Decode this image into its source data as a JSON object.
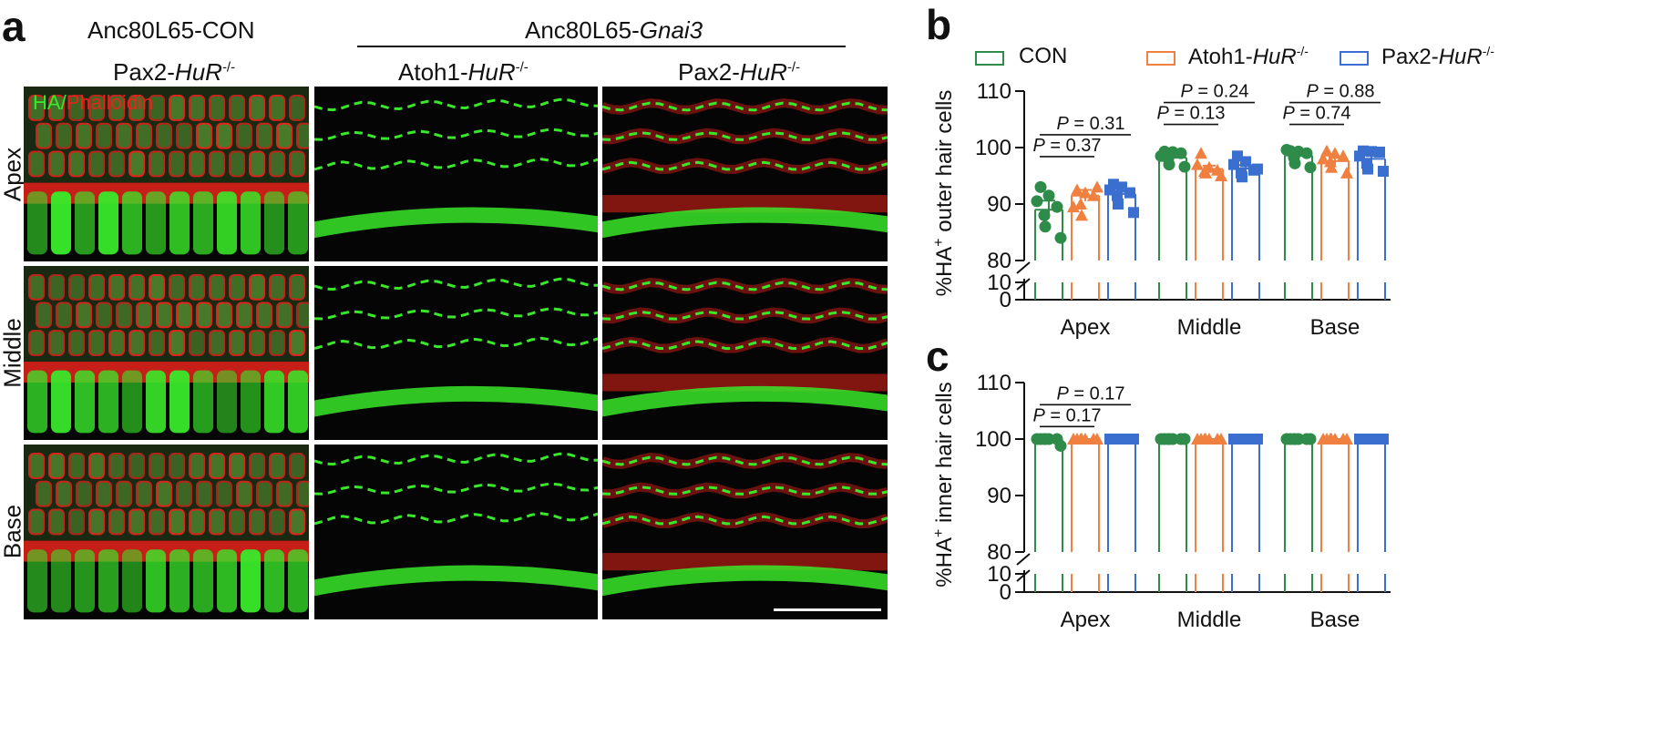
{
  "panel_a": {
    "letter": "a",
    "group_con": "Anc80L65-CON",
    "group_gnai3_prefix": "Anc80L65-",
    "group_gnai3_gene": "Gnai3",
    "col_con_prefix": "Pax2-",
    "col_con_gene": "HuR",
    "col_con_sup": "-/-",
    "col_atoh_prefix": "Atoh1-",
    "col_atoh_gene": "HuR",
    "col_atoh_sup": "-/-",
    "col_pax_prefix": "Pax2-",
    "col_pax_gene": "HuR",
    "col_pax_sup": "-/-",
    "rows": [
      "Apex",
      "Middle",
      "Base"
    ],
    "stain_ha": "HA",
    "stain_sep": "/",
    "stain_phalloidin": "Phalloidin",
    "colors": {
      "ha": "#39e82a",
      "phalloidin": "#e8241c"
    }
  },
  "legend": {
    "con": "CON",
    "atoh_prefix": "Atoh1-",
    "atoh_gene": "HuR",
    "atoh_sup": "-/-",
    "pax_prefix": "Pax2-",
    "pax_gene": "HuR",
    "pax_sup": "-/-"
  },
  "colors": {
    "con": "#2e8b4a",
    "atoh": "#f08040",
    "pax": "#3a6fd0"
  },
  "chart_data": [
    {
      "letter": "b",
      "type": "bar",
      "ylabel_prefix": "%HA",
      "ylabel_sup": "+",
      "ylabel_suffix": " outer hair cells",
      "categories": [
        "Apex",
        "Middle",
        "Base"
      ],
      "y_break": {
        "lower": [
          0,
          10
        ],
        "upper": [
          80,
          110
        ]
      },
      "yticks_upper": [
        80,
        90,
        100,
        110
      ],
      "yticks_lower": [
        0,
        10
      ],
      "series": [
        {
          "name": "CON",
          "values": [
            89.0,
            98.2,
            98.6
          ],
          "sem": [
            1.6,
            0.7,
            0.8
          ],
          "points": [
            [
              93.0,
              91.5,
              89.5,
              88.0,
              86.0,
              84.0,
              90.5
            ],
            [
              99.3,
              99.2,
              99.0,
              98.0,
              97.0,
              96.6,
              98.5
            ],
            [
              99.4,
              99.3,
              99.0,
              98.2,
              97.2,
              96.5,
              99.6
            ]
          ]
        },
        {
          "name": "Atoh1-HuR-/-",
          "values": [
            91.5,
            96.2,
            97.6
          ],
          "sem": [
            1.0,
            0.6,
            0.7
          ],
          "points": [
            [
              92.5,
              92.0,
              91.5,
              90.0,
              88.0,
              93.0,
              89.5
            ],
            [
              99.0,
              96.5,
              96.0,
              95.8,
              95.5,
              95.0,
              97.0
            ],
            [
              99.4,
              99.0,
              98.5,
              97.5,
              96.5,
              95.5,
              98.0
            ]
          ]
        },
        {
          "name": "Pax2-HuR-/-",
          "values": [
            91.8,
            96.3,
            98.0
          ],
          "sem": [
            0.9,
            0.6,
            0.6
          ],
          "points": [
            [
              93.5,
              93.0,
              92.0,
              91.5,
              90.0,
              88.5,
              92.5
            ],
            [
              98.5,
              97.5,
              96.0,
              95.5,
              94.8,
              96.2,
              97.0
            ],
            [
              99.4,
              99.3,
              99.2,
              97.2,
              96.2,
              95.8,
              98.5
            ]
          ]
        }
      ],
      "comparisons": [
        {
          "text_p": "P",
          "text_val": " = 0.37",
          "cat": 0,
          "from": 0,
          "to": 1,
          "level": 0
        },
        {
          "text_p": "P",
          "text_val": " = 0.31",
          "cat": 0,
          "from": 0,
          "to": 2,
          "level": 1
        },
        {
          "text_p": "P",
          "text_val": " = 0.13",
          "cat": 1,
          "from": 0,
          "to": 1,
          "level": 0
        },
        {
          "text_p": "P",
          "text_val": " = 0.24",
          "cat": 1,
          "from": 0,
          "to": 2,
          "level": 1
        },
        {
          "text_p": "P",
          "text_val": " = 0.74",
          "cat": 2,
          "from": 0,
          "to": 1,
          "level": 0
        },
        {
          "text_p": "P",
          "text_val": " = 0.88",
          "cat": 2,
          "from": 0,
          "to": 2,
          "level": 1
        }
      ]
    },
    {
      "letter": "c",
      "type": "bar",
      "ylabel_prefix": "%HA",
      "ylabel_sup": "+",
      "ylabel_suffix": " inner hair cells",
      "categories": [
        "Apex",
        "Middle",
        "Base"
      ],
      "y_break": {
        "lower": [
          0,
          10
        ],
        "upper": [
          80,
          110
        ]
      },
      "yticks_upper": [
        80,
        90,
        100,
        110
      ],
      "yticks_lower": [
        0,
        10
      ],
      "series": [
        {
          "name": "CON",
          "values": [
            99.8,
            100,
            100
          ],
          "sem": [
            0.2,
            0,
            0
          ],
          "points": [
            [
              100,
              100,
              100,
              100,
              100,
              98.8,
              100
            ],
            [
              100,
              100,
              100,
              100,
              100,
              100,
              100
            ],
            [
              100,
              100,
              100,
              100,
              100,
              100,
              100
            ]
          ]
        },
        {
          "name": "Atoh1-HuR-/-",
          "values": [
            100,
            100,
            100
          ],
          "sem": [
            0,
            0,
            0
          ],
          "points": [
            [
              100,
              100,
              100,
              100,
              100,
              100,
              100
            ],
            [
              100,
              100,
              100,
              100,
              100,
              100,
              100
            ],
            [
              100,
              100,
              100,
              100,
              100,
              100,
              100
            ]
          ]
        },
        {
          "name": "Pax2-HuR-/-",
          "values": [
            100,
            100,
            100
          ],
          "sem": [
            0,
            0,
            0
          ],
          "points": [
            [
              100,
              100,
              100,
              100,
              100,
              100,
              100
            ],
            [
              100,
              100,
              100,
              100,
              100,
              100,
              100
            ],
            [
              100,
              100,
              100,
              100,
              100,
              100,
              100
            ]
          ]
        }
      ],
      "comparisons": [
        {
          "text_p": "P",
          "text_val": " = 0.17",
          "cat": 0,
          "from": 0,
          "to": 1,
          "level": 0
        },
        {
          "text_p": "P",
          "text_val": " = 0.17",
          "cat": 0,
          "from": 0,
          "to": 2,
          "level": 1
        }
      ]
    }
  ]
}
